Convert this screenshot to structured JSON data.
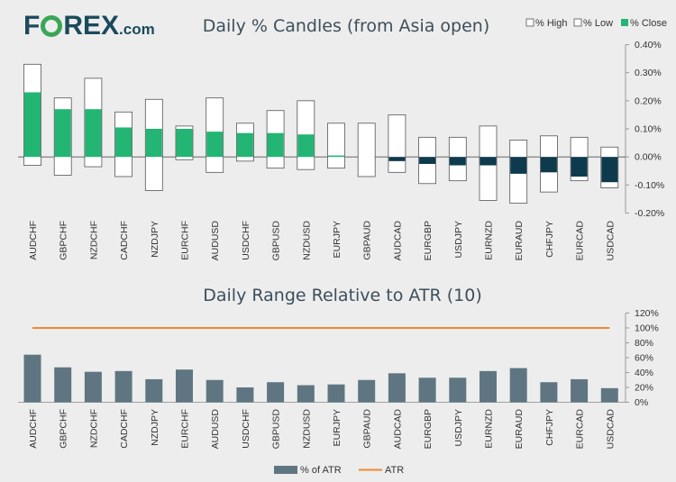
{
  "logo": {
    "part1": "F",
    "part2": "REX",
    "suffix": ".com"
  },
  "colors": {
    "green": "#22b573",
    "navy": "#0e3a4e",
    "bar": "#5f7682",
    "atr_line": "#ef8a31",
    "axis": "#999999",
    "title": "#3d4f5c"
  },
  "chart_data": [
    {
      "type": "candlestick",
      "title": "Daily % Candles (from Asia open)",
      "legend": [
        "% High",
        "% Low",
        "% Close"
      ],
      "y_ticks": [
        "0.40%",
        "0.30%",
        "0.20%",
        "0.10%",
        "0.00%",
        "-0.10%",
        "-0.20%"
      ],
      "ylim": [
        -0.2,
        0.4
      ],
      "categories": [
        "AUDCHF",
        "GBPCHF",
        "NZDCHF",
        "CADCHF",
        "NZDJPY",
        "EURCHF",
        "AUDUSD",
        "USDCHF",
        "GBPUSD",
        "NZDUSD",
        "EURJPY",
        "GBPAUD",
        "AUDCAD",
        "EURGBP",
        "USDJPY",
        "EURNZD",
        "EURAUD",
        "CHFJPY",
        "EURCAD",
        "USDCAD"
      ],
      "high": [
        0.33,
        0.21,
        0.28,
        0.16,
        0.205,
        0.11,
        0.21,
        0.12,
        0.165,
        0.2,
        0.12,
        0.12,
        0.15,
        0.07,
        0.07,
        0.11,
        0.06,
        0.075,
        0.07,
        0.035
      ],
      "low": [
        -0.03,
        -0.065,
        -0.035,
        -0.07,
        -0.12,
        -0.01,
        -0.055,
        -0.015,
        -0.04,
        -0.045,
        -0.04,
        -0.07,
        -0.055,
        -0.095,
        -0.085,
        -0.155,
        -0.165,
        -0.125,
        -0.085,
        -0.11
      ],
      "close": [
        0.23,
        0.17,
        0.17,
        0.105,
        0.1,
        0.1,
        0.09,
        0.085,
        0.085,
        0.08,
        0.005,
        0.0,
        -0.015,
        -0.025,
        -0.03,
        -0.03,
        -0.06,
        -0.055,
        -0.07,
        -0.09
      ]
    },
    {
      "type": "bar+line",
      "title": "Daily Range Relative to ATR (10)",
      "y_ticks": [
        "120%",
        "100%",
        "80%",
        "60%",
        "40%",
        "20%",
        "0%"
      ],
      "ylim": [
        0,
        120
      ],
      "categories": [
        "AUDCHF",
        "GBPCHF",
        "NZDCHF",
        "CADCHF",
        "NZDJPY",
        "EURCHF",
        "AUDUSD",
        "USDCHF",
        "GBPUSD",
        "NZDUSD",
        "EURJPY",
        "GBPAUD",
        "AUDCAD",
        "EURGBP",
        "USDJPY",
        "EURNZD",
        "EURAUD",
        "CHFJPY",
        "EURCAD",
        "USDCAD"
      ],
      "series": [
        {
          "name": "% of ATR",
          "type": "bar",
          "values": [
            64,
            47,
            41,
            42,
            31,
            44,
            30,
            20,
            27,
            23,
            24,
            30,
            39,
            33,
            33,
            42,
            46,
            27,
            31,
            19
          ]
        },
        {
          "name": "ATR",
          "type": "line",
          "values": [
            100,
            100,
            100,
            100,
            100,
            100,
            100,
            100,
            100,
            100,
            100,
            100,
            100,
            100,
            100,
            100,
            100,
            100,
            100,
            100
          ]
        }
      ]
    }
  ]
}
